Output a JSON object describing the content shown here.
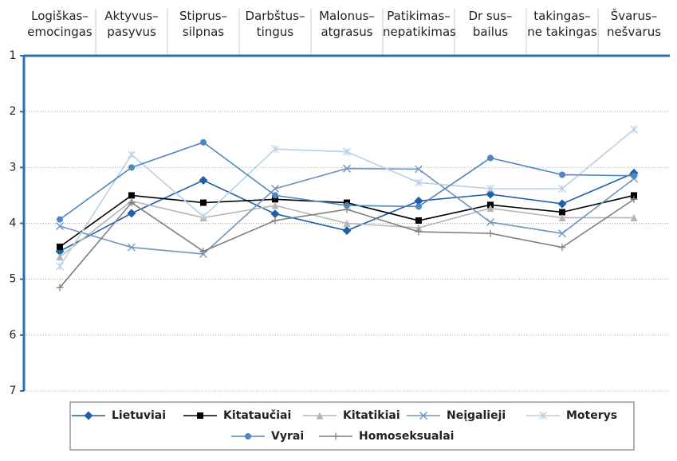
{
  "chart_data": {
    "type": "line",
    "categories": [
      "Logiškas–\nemocingas",
      "Aktyvus–\npasyvus",
      "Stiprus–\nsilpnas",
      "Darbštus–\ntingus",
      "Malonus–\natgrasus",
      "Patikimas–\nnepatikimas",
      "Dr sus–\nbailus",
      "takingas–\nne takingas",
      "Švarus–\nnešvarus"
    ],
    "ylim": [
      1,
      7
    ],
    "yticks": [
      1,
      2,
      3,
      4,
      5,
      6,
      7
    ],
    "y_inverted": true,
    "grid": true,
    "series": [
      {
        "name": "Lietuviai",
        "color": "#1f5fa6",
        "marker": "diamond",
        "values": [
          4.5,
          3.82,
          3.23,
          3.83,
          4.13,
          3.6,
          3.48,
          3.65,
          3.1
        ]
      },
      {
        "name": "Kitataučiai",
        "color": "#000000",
        "marker": "square",
        "values": [
          4.42,
          3.5,
          3.63,
          3.57,
          3.63,
          3.95,
          3.67,
          3.8,
          3.5
        ]
      },
      {
        "name": "Kitatikiai",
        "color": "#b5b5b5",
        "marker": "triangle",
        "values": [
          4.6,
          3.6,
          3.9,
          3.68,
          4.0,
          4.08,
          3.73,
          3.9,
          3.9
        ]
      },
      {
        "name": "Neįgalieji",
        "color": "#6f93bf",
        "marker": "x",
        "values": [
          4.05,
          4.43,
          4.55,
          3.38,
          3.02,
          3.03,
          3.98,
          4.18,
          3.2
        ]
      },
      {
        "name": "Moterys",
        "color": "#b8cfe6",
        "marker": "asterisk",
        "values": [
          4.77,
          2.77,
          3.88,
          2.67,
          2.72,
          3.27,
          3.38,
          3.38,
          2.32
        ]
      },
      {
        "name": "Vyrai",
        "color": "#4f86c0",
        "marker": "circle",
        "values": [
          3.93,
          3.0,
          2.55,
          3.5,
          3.68,
          3.7,
          2.83,
          3.13,
          3.15
        ]
      },
      {
        "name": "Homoseksualai",
        "color": "#7f7f7f",
        "marker": "plus",
        "values": [
          5.15,
          3.63,
          4.5,
          3.95,
          3.75,
          4.15,
          4.18,
          4.43,
          3.57
        ]
      }
    ]
  }
}
